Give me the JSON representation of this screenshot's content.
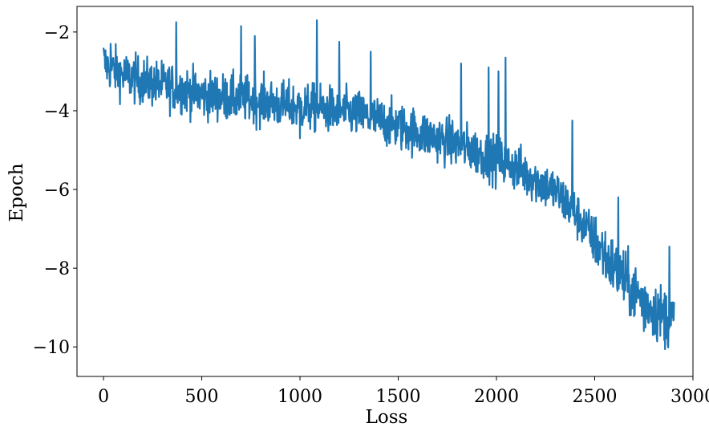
{
  "chart_data": {
    "type": "line",
    "title": "",
    "xlabel": "Loss",
    "ylabel": "Epoch",
    "xlim": [
      -135,
      3000
    ],
    "ylim": [
      -10.75,
      -1.35
    ],
    "xticks": [
      0,
      500,
      1000,
      1500,
      2000,
      2500,
      3000
    ],
    "xtick_labels": [
      "0",
      "500",
      "1000",
      "1500",
      "2000",
      "2500",
      "3000"
    ],
    "yticks": [
      -2,
      -4,
      -6,
      -8,
      -10
    ],
    "ytick_labels": [
      "−2",
      "−4",
      "−6",
      "−8",
      "−10"
    ],
    "grid": false,
    "legend": "none",
    "line_color": "#1f77b4",
    "series": [
      {
        "x": [
          0,
          100,
          200,
          300,
          400,
          500,
          600,
          700,
          800,
          900,
          1000,
          1100,
          1200,
          1300,
          1400,
          1500,
          1600,
          1700,
          1800,
          1900,
          2000,
          2100,
          2200,
          2300,
          2400,
          2500,
          2600,
          2700,
          2800,
          2900
        ],
        "values": [
          -2.8,
          -3.1,
          -3.25,
          -3.35,
          -3.45,
          -3.6,
          -3.65,
          -3.7,
          -3.75,
          -3.85,
          -3.9,
          -3.95,
          -4.0,
          -4.1,
          -4.25,
          -4.4,
          -4.55,
          -4.7,
          -4.85,
          -5.05,
          -5.25,
          -5.45,
          -5.75,
          -6.05,
          -6.6,
          -7.3,
          -8.0,
          -8.6,
          -9.05,
          -9.35
        ],
        "spikes": [
          {
            "x": 0,
            "y": -2.4
          },
          {
            "x": 35,
            "y": -2.3
          },
          {
            "x": 370,
            "y": -1.75
          },
          {
            "x": 700,
            "y": -1.85
          },
          {
            "x": 770,
            "y": -2.1
          },
          {
            "x": 1085,
            "y": -1.7
          },
          {
            "x": 1200,
            "y": -2.25
          },
          {
            "x": 1360,
            "y": -2.5
          },
          {
            "x": 1820,
            "y": -2.8
          },
          {
            "x": 1960,
            "y": -2.9
          },
          {
            "x": 2010,
            "y": -3.0
          },
          {
            "x": 2045,
            "y": -2.65
          },
          {
            "x": 2385,
            "y": -4.25
          },
          {
            "x": 2620,
            "y": -6.2
          },
          {
            "x": 2880,
            "y": -7.45
          },
          {
            "x": 2905,
            "y": -8.05
          }
        ],
        "dips": [
          {
            "x": 1000,
            "y": -4.7
          },
          {
            "x": 1740,
            "y": -5.1
          },
          {
            "x": 2200,
            "y": -6.0
          },
          {
            "x": 2750,
            "y": -9.6
          },
          {
            "x": 2905,
            "y": -10.3
          }
        ]
      }
    ]
  }
}
